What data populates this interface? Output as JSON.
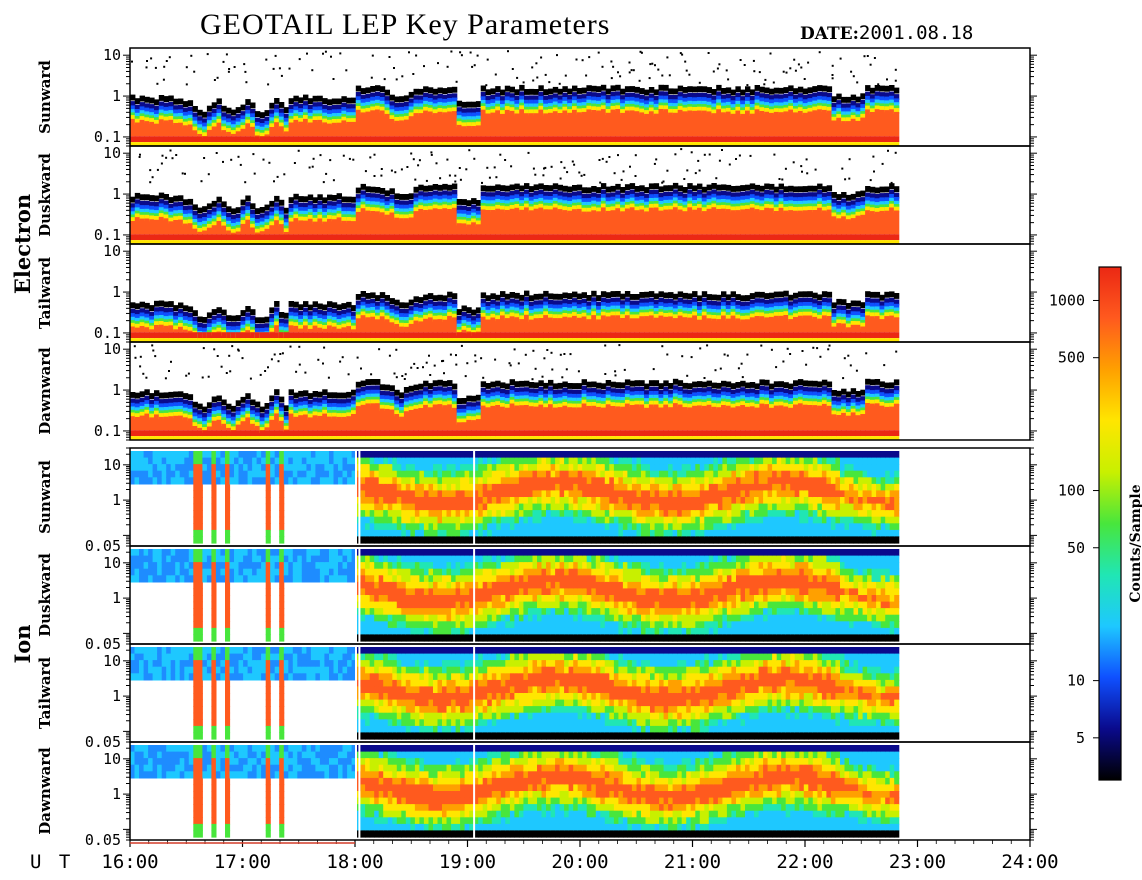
{
  "header": {
    "title": "GEOTAIL LEP Key Parameters",
    "date_label": "DATE:",
    "date_value": "2001.08.18"
  },
  "colors": {
    "colormap": [
      "#000000",
      "#0a0a8c",
      "#0f50ff",
      "#1ec8ff",
      "#20e6b4",
      "#48e63c",
      "#c8f000",
      "#ffe600",
      "#ffa000",
      "#ff5a1e",
      "#eb2814"
    ],
    "fill": "#ff5a1e",
    "background": "#ffffff"
  },
  "chart_data": {
    "type": "heatmap",
    "x_axis": {
      "label": "U T",
      "range": [
        "16:00",
        "24:00"
      ],
      "ticks": [
        "16:00",
        "17:00",
        "18:00",
        "19:00",
        "20:00",
        "21:00",
        "22:00",
        "23:00",
        "24:00"
      ],
      "data_end": "22:50"
    },
    "groups": [
      {
        "name": "Electron",
        "panels": [
          {
            "name": "Sunward",
            "y_ticks": [
              "10",
              "1",
              "0.1"
            ],
            "y_log_range": [
              0.06,
              15
            ]
          },
          {
            "name": "Duskward",
            "y_ticks": [
              "10",
              "1",
              "0.1"
            ],
            "y_log_range": [
              0.06,
              15
            ]
          },
          {
            "name": "Tailward",
            "y_ticks": [
              "10",
              "1",
              "0.1"
            ],
            "y_log_range": [
              0.06,
              15
            ]
          },
          {
            "name": "Dawnward",
            "y_ticks": [
              "10",
              "1",
              "0.1"
            ],
            "y_log_range": [
              0.06,
              15
            ]
          }
        ]
      },
      {
        "name": "Ion",
        "panels": [
          {
            "name": "Sunward",
            "y_ticks": [
              "10",
              "1",
              "0.05"
            ],
            "y_log_range": [
              0.05,
              30
            ]
          },
          {
            "name": "Duskward",
            "y_ticks": [
              "10",
              "1",
              "0.05"
            ],
            "y_log_range": [
              0.05,
              30
            ]
          },
          {
            "name": "Tailward",
            "y_ticks": [
              "10",
              "1",
              "0.05"
            ],
            "y_log_range": [
              0.05,
              30
            ]
          },
          {
            "name": "Dawnward",
            "y_ticks": [
              "10",
              "1",
              "0.05"
            ],
            "y_log_range": [
              0.05,
              30
            ]
          }
        ]
      }
    ],
    "colorbar": {
      "label": "Counts/Sample",
      "scale": "log",
      "range": [
        3,
        1500
      ],
      "ticks": [
        "1000",
        "500",
        "100",
        "50",
        "10",
        "5"
      ]
    }
  }
}
